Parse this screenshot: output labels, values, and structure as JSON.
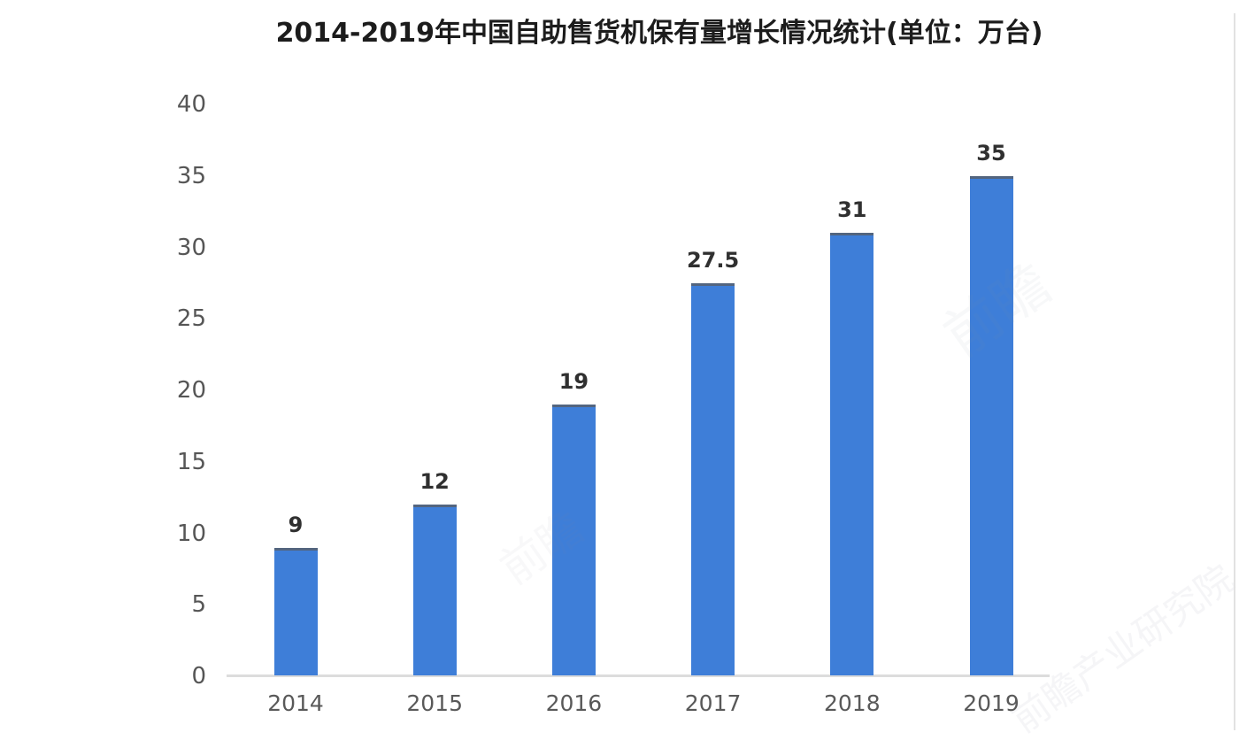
{
  "title": "2014-2019年中国自助售货机保有量增长情况统计(单位：万台)",
  "chart_data": {
    "type": "bar",
    "title": "2014-2019年中国自助售货机保有量增长情况统计(单位：万台)",
    "categories": [
      "2014",
      "2015",
      "2016",
      "2017",
      "2018",
      "2019"
    ],
    "values": [
      9,
      12,
      19,
      27.5,
      31,
      35
    ],
    "data_labels": [
      "9",
      "12",
      "19",
      "27.5",
      "31",
      "35"
    ],
    "xlabel": "",
    "ylabel": "",
    "unit": "万台",
    "ylim": [
      0,
      40
    ],
    "yticks": [
      0,
      5,
      10,
      15,
      20,
      25,
      30,
      35,
      40
    ],
    "grid": false,
    "legend": null,
    "colors": {
      "bar": "#3e7ed8",
      "bar_top_edge": "#53657f",
      "axis_line": "#dcdcdc",
      "tick_label": "#565656",
      "data_label": "#303030",
      "title": "#1c1c1c",
      "background": "#ffffff"
    }
  },
  "watermarks": {
    "ghost_a": "前瞻",
    "ghost_b": "前瞻",
    "ghost_c": "前瞻产业研究院"
  }
}
